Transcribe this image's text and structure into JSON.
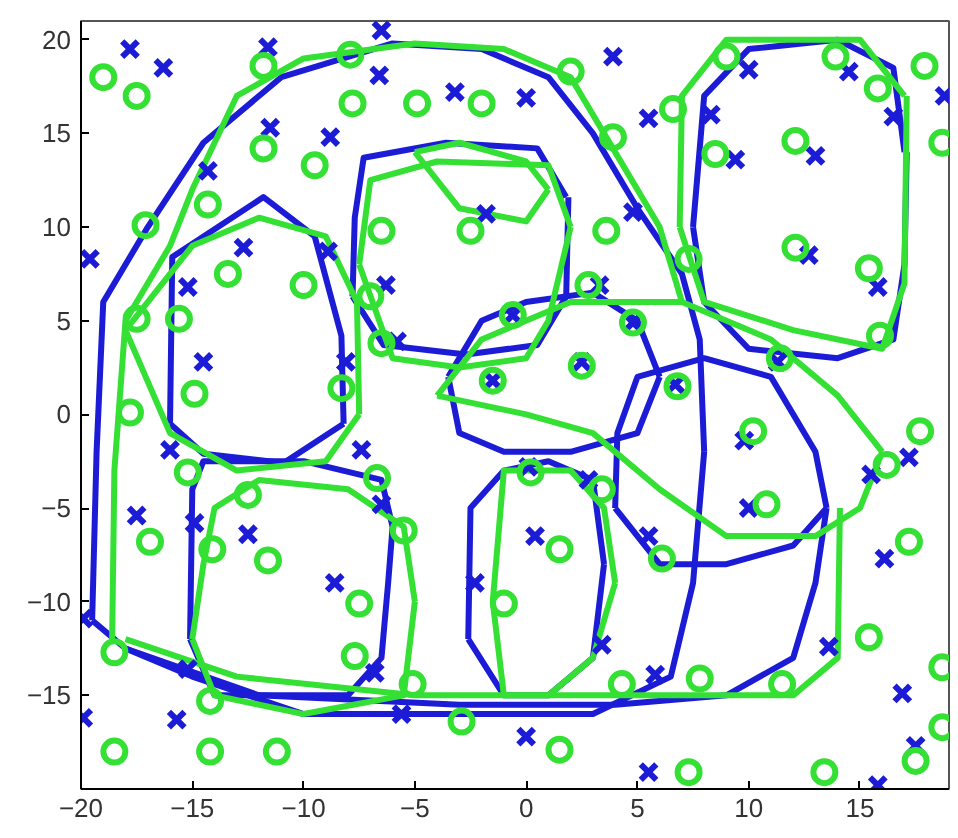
{
  "chart_data": {
    "type": "scatter",
    "xlim": [
      -20,
      19
    ],
    "ylim": [
      -20,
      21
    ],
    "xticks": [
      -20,
      -15,
      -10,
      -5,
      0,
      5,
      10,
      15
    ],
    "yticks": [
      -15,
      -10,
      -5,
      0,
      5,
      10,
      15,
      20
    ],
    "grid": false,
    "series": [
      {
        "marker": "cross",
        "color": "#1c1cd6",
        "x": [
          -17.8,
          -16.3,
          -11.6,
          -6.5,
          -6.6,
          -11.5,
          -8.8,
          -14.3,
          -19.6,
          -12.7,
          -8.9,
          -15.2,
          -6.3,
          -5.8,
          -14.5,
          -8.1,
          -1.8,
          -3.2,
          0,
          3.9,
          5.5,
          4.8,
          10.0,
          14.5,
          16.5,
          18.8,
          8.3,
          9.4,
          13.0,
          12.7,
          15.8,
          3.3,
          -0.6,
          4.8,
          2.5,
          -1.5,
          11.3,
          6.7,
          -16.0,
          -7.4,
          -17.5,
          -14.9,
          -12.5,
          -6.5,
          -8.6,
          -19.9,
          -15.2,
          -6.8,
          -19.9,
          -15.7,
          -5.6,
          -2.3,
          0.1,
          2.8,
          0.4,
          5.5,
          3.4,
          5.8,
          9.8,
          10.0,
          15.5,
          17.2,
          16.1,
          13.6,
          16.9,
          17.5,
          0,
          5.5,
          15.8
        ],
        "values": [
          19.5,
          18.5,
          19.6,
          20.5,
          18.1,
          15.3,
          14.8,
          13.0,
          8.3,
          8.9,
          8.7,
          6.8,
          6.9,
          3.9,
          2.8,
          2.8,
          10.7,
          17.2,
          16.9,
          19.1,
          15.8,
          10.8,
          18.4,
          18.3,
          15.9,
          17.0,
          16.0,
          13.6,
          13.8,
          8.5,
          6.8,
          6.9,
          5.3,
          4.9,
          2.8,
          1.8,
          2.8,
          1.6,
          -1.9,
          -1.9,
          -5.4,
          -5.8,
          -6.4,
          -4.8,
          -9.0,
          -10.9,
          -13.6,
          -13.8,
          -16.2,
          -16.3,
          -16.0,
          -9.0,
          -2.8,
          -3.5,
          -6.5,
          -6.5,
          -12.3,
          -13.9,
          -1.4,
          -5.0,
          -3.2,
          -2.3,
          -7.7,
          -12.4,
          -14.9,
          -17.7,
          -17.2,
          -19.1,
          -19.8
        ]
      },
      {
        "marker": "circle",
        "color": "#33e033",
        "x": [
          -19.0,
          -17.5,
          -11.8,
          -7.9,
          -7.8,
          -4.9,
          -11.8,
          -9.5,
          -14.3,
          -17.1,
          -6.5,
          -13.4,
          -10,
          -7.0,
          -17.5,
          -15.6,
          -6.5,
          -14.9,
          -8.3,
          -17.8,
          -2.0,
          2.0,
          3.9,
          6.6,
          9.0,
          13.9,
          15.8,
          17.9,
          18.7,
          12.1,
          8.5,
          -2.5,
          3.6,
          7.3,
          12.1,
          15.4,
          15.9,
          2.8,
          -0.6,
          4.8,
          2.5,
          -1.5,
          11.4,
          6.8,
          -15.2,
          -12.5,
          -6.7,
          -5.5,
          -16.9,
          -14.1,
          -11.6,
          -7.5,
          -18.5,
          -7.7,
          -14.2,
          -5.1,
          -2.9,
          -18.5,
          -14.2,
          -11.2,
          0.2,
          3.4,
          1.5,
          6.1,
          -1.0,
          4.3,
          7.8,
          11.5,
          10.2,
          10.8,
          16.2,
          17.7,
          17.2,
          15.4,
          18.7,
          18.7,
          17.5,
          1.5,
          7.3,
          13.4
        ],
        "values": [
          18.0,
          17.0,
          18.6,
          19.2,
          16.6,
          16.6,
          14.2,
          13.3,
          11.2,
          10.1,
          9.8,
          7.5,
          6.9,
          6.3,
          5.1,
          5.1,
          3.8,
          1.1,
          1.4,
          0.1,
          16.6,
          18.3,
          14.8,
          16.3,
          19.1,
          19.1,
          17.4,
          18.6,
          14.5,
          14.6,
          13.9,
          9.8,
          9.8,
          8.3,
          8.9,
          7.8,
          4.2,
          6.9,
          5.3,
          4.9,
          2.6,
          1.8,
          3.0,
          1.5,
          -3.1,
          -4.3,
          -3.4,
          -6.2,
          -6.8,
          -7.2,
          -7.8,
          -10.1,
          -12.7,
          -12.9,
          -15.3,
          -14.4,
          -16.4,
          -18.0,
          -18.0,
          -18.0,
          -3.1,
          -4.0,
          -7.2,
          -7.7,
          -10.1,
          -14.4,
          -14.1,
          -14.4,
          -0.9,
          -4.8,
          -2.7,
          -0.9,
          -6.8,
          -11.9,
          -13.5,
          -16.7,
          -18.5,
          -17.9,
          -19.1,
          -19.1
        ]
      },
      {
        "type": "line",
        "color": "#1c1cd6",
        "x": [
          -19.5,
          -19.3,
          -19,
          -17,
          -14.5,
          -11,
          -6,
          -2,
          1,
          3,
          5,
          7,
          7.8,
          8,
          null,
          -19.5,
          -18,
          -15,
          -10,
          -3,
          3,
          6.5,
          7.5,
          8
        ],
        "values": [
          -11,
          -2,
          6,
          10,
          14.5,
          18,
          19.8,
          19.5,
          18,
          15,
          11,
          7.5,
          4,
          -2,
          null,
          -11,
          -12.5,
          -14,
          -16,
          -16,
          -16,
          -14,
          -9,
          -2
        ]
      },
      {
        "type": "line",
        "color": "#1c1cd6",
        "x": [
          -16,
          -15.9,
          -11.8,
          -9.5,
          -8.3,
          -8.2,
          null,
          -16,
          -14.5,
          -10.9,
          -8.2
        ],
        "values": [
          -0.5,
          8.4,
          11.6,
          9.5,
          4.2,
          -0.5,
          null,
          -0.5,
          -2.1,
          -2.6,
          -0.5
        ]
      },
      {
        "type": "line",
        "color": "#1c1cd6",
        "x": [
          -7.8,
          -7.7,
          -7.3,
          -3.6,
          0.5,
          1.8,
          null,
          -7.8,
          -6.4,
          -2.7,
          0.5,
          1.8,
          1.9
        ],
        "values": [
          6.3,
          10.5,
          13.7,
          14.5,
          14.2,
          11.6,
          null,
          6.3,
          3.7,
          3.2,
          3.7,
          6.3,
          11.6
        ]
      },
      {
        "type": "line",
        "color": "#1c1cd6",
        "x": [
          7.5,
          8,
          10,
          14,
          16.5,
          17,
          null,
          7.5,
          8,
          10,
          14,
          16.5,
          17,
          17.1
        ],
        "values": [
          10,
          17,
          19.5,
          20,
          18.5,
          14,
          null,
          10,
          6,
          3.5,
          3,
          4,
          8,
          14
        ]
      },
      {
        "type": "line",
        "color": "#1c1cd6",
        "x": [
          -3.5,
          -2,
          0,
          3,
          5,
          6,
          null,
          -3.5,
          -3,
          -1,
          2,
          5,
          6
        ],
        "values": [
          2,
          5,
          6,
          6.5,
          5,
          2,
          null,
          2,
          -1,
          -2,
          -2,
          -1,
          2
        ]
      },
      {
        "type": "line",
        "color": "#1c1cd6",
        "x": [
          -2.6,
          -2.5,
          -1,
          1,
          3,
          3.5,
          null,
          -2.6,
          -1,
          1,
          3,
          3.5
        ],
        "values": [
          -12,
          -5,
          -3,
          -2.5,
          -3.5,
          -8,
          null,
          -12,
          -15,
          -15,
          -13,
          -8
        ]
      },
      {
        "type": "line",
        "color": "#1c1cd6",
        "x": [
          -15.1,
          -15,
          -14.5,
          -10,
          -6.5,
          -6,
          null,
          -15.1,
          -14,
          -8,
          -6.5,
          -6.2,
          -6
        ],
        "values": [
          -12,
          -4,
          -2.5,
          -2.5,
          -3.5,
          -6,
          null,
          -12,
          -15,
          -15,
          -13,
          -9,
          -6
        ]
      },
      {
        "type": "line",
        "color": "#1c1cd6",
        "x": [
          4,
          4.1,
          5,
          8,
          11,
          13,
          13.5,
          null,
          4,
          6,
          9,
          12,
          13.5
        ],
        "values": [
          -5,
          -1,
          2,
          3,
          2,
          -2,
          -5,
          null,
          -5,
          -8,
          -8,
          -7,
          -5
        ]
      },
      {
        "type": "line",
        "color": "#1c1cd6",
        "x": [
          -18,
          -12,
          -3,
          4,
          9,
          12,
          13,
          13.5
        ],
        "values": [
          -12.5,
          -15,
          -15.5,
          -15.5,
          -15,
          -13,
          -9,
          -5
        ]
      },
      {
        "type": "line",
        "color": "#33e033",
        "x": [
          -18.6,
          -18.5,
          -18,
          -16,
          -15,
          -13,
          -10,
          -5,
          -1,
          2,
          4,
          6,
          7
        ],
        "values": [
          -12,
          -3,
          5,
          9,
          12,
          17,
          19,
          19.8,
          19.5,
          18,
          14,
          10,
          6
        ]
      },
      {
        "type": "line",
        "color": "#33e033",
        "x": [
          -18,
          -15,
          -12,
          -9,
          -7.6,
          -7.5,
          null,
          -18,
          -16,
          -13,
          -9,
          -7.5
        ],
        "values": [
          4.5,
          9,
          10.5,
          9.5,
          6,
          0,
          null,
          4.5,
          -1,
          -3,
          -2.5,
          0
        ]
      },
      {
        "type": "line",
        "color": "#33e033",
        "x": [
          -7.5,
          -7,
          -4,
          1,
          2,
          null,
          -7.5,
          -6,
          -3,
          0,
          1,
          2
        ],
        "values": [
          8,
          12.5,
          13.5,
          13.3,
          10,
          null,
          8,
          3,
          2.5,
          3,
          5,
          10
        ]
      },
      {
        "type": "line",
        "color": "#33e033",
        "x": [
          -5,
          -3,
          0,
          1,
          null,
          -5,
          -3,
          0,
          1
        ],
        "values": [
          14,
          14.5,
          13.5,
          12,
          null,
          14,
          11,
          10.3,
          12
        ]
      },
      {
        "type": "line",
        "color": "#33e033",
        "x": [
          6.9,
          7,
          9,
          15,
          17,
          null,
          6.9,
          8,
          12,
          16,
          17,
          17.1
        ],
        "values": [
          10,
          17,
          20,
          20,
          17,
          null,
          10,
          6,
          4.5,
          3.5,
          7,
          17
        ]
      },
      {
        "type": "line",
        "color": "#33e033",
        "x": [
          -4,
          -2,
          2,
          7,
          11,
          14,
          16,
          null,
          -4,
          0,
          3,
          6,
          9,
          13,
          15,
          16
        ],
        "values": [
          1,
          4,
          6,
          6,
          4,
          1,
          -2,
          null,
          1,
          0,
          -1,
          -4,
          -6.5,
          -6.5,
          -5,
          -2
        ]
      },
      {
        "type": "line",
        "color": "#33e033",
        "x": [
          -15,
          -14.5,
          -14,
          -12,
          -8,
          -5.5,
          -5,
          null,
          -15,
          -14,
          -10,
          -5.5,
          -5
        ],
        "values": [
          -12,
          -8,
          -5,
          -3.5,
          -4,
          -6,
          -10,
          null,
          -12,
          -15,
          -16,
          -15,
          -10
        ]
      },
      {
        "type": "line",
        "color": "#33e033",
        "x": [
          -1.5,
          -1,
          2,
          3.5,
          4,
          null,
          -1.5,
          -1,
          1,
          3,
          4
        ],
        "values": [
          -10,
          -3,
          -3,
          -5,
          -9,
          null,
          -10,
          -15,
          -15,
          -13,
          -9
        ]
      },
      {
        "type": "line",
        "color": "#33e033",
        "x": [
          -18,
          -13,
          -5,
          5,
          12,
          14,
          14.1
        ],
        "values": [
          -12,
          -14,
          -15,
          -15,
          -15,
          -13,
          -5
        ]
      }
    ]
  }
}
